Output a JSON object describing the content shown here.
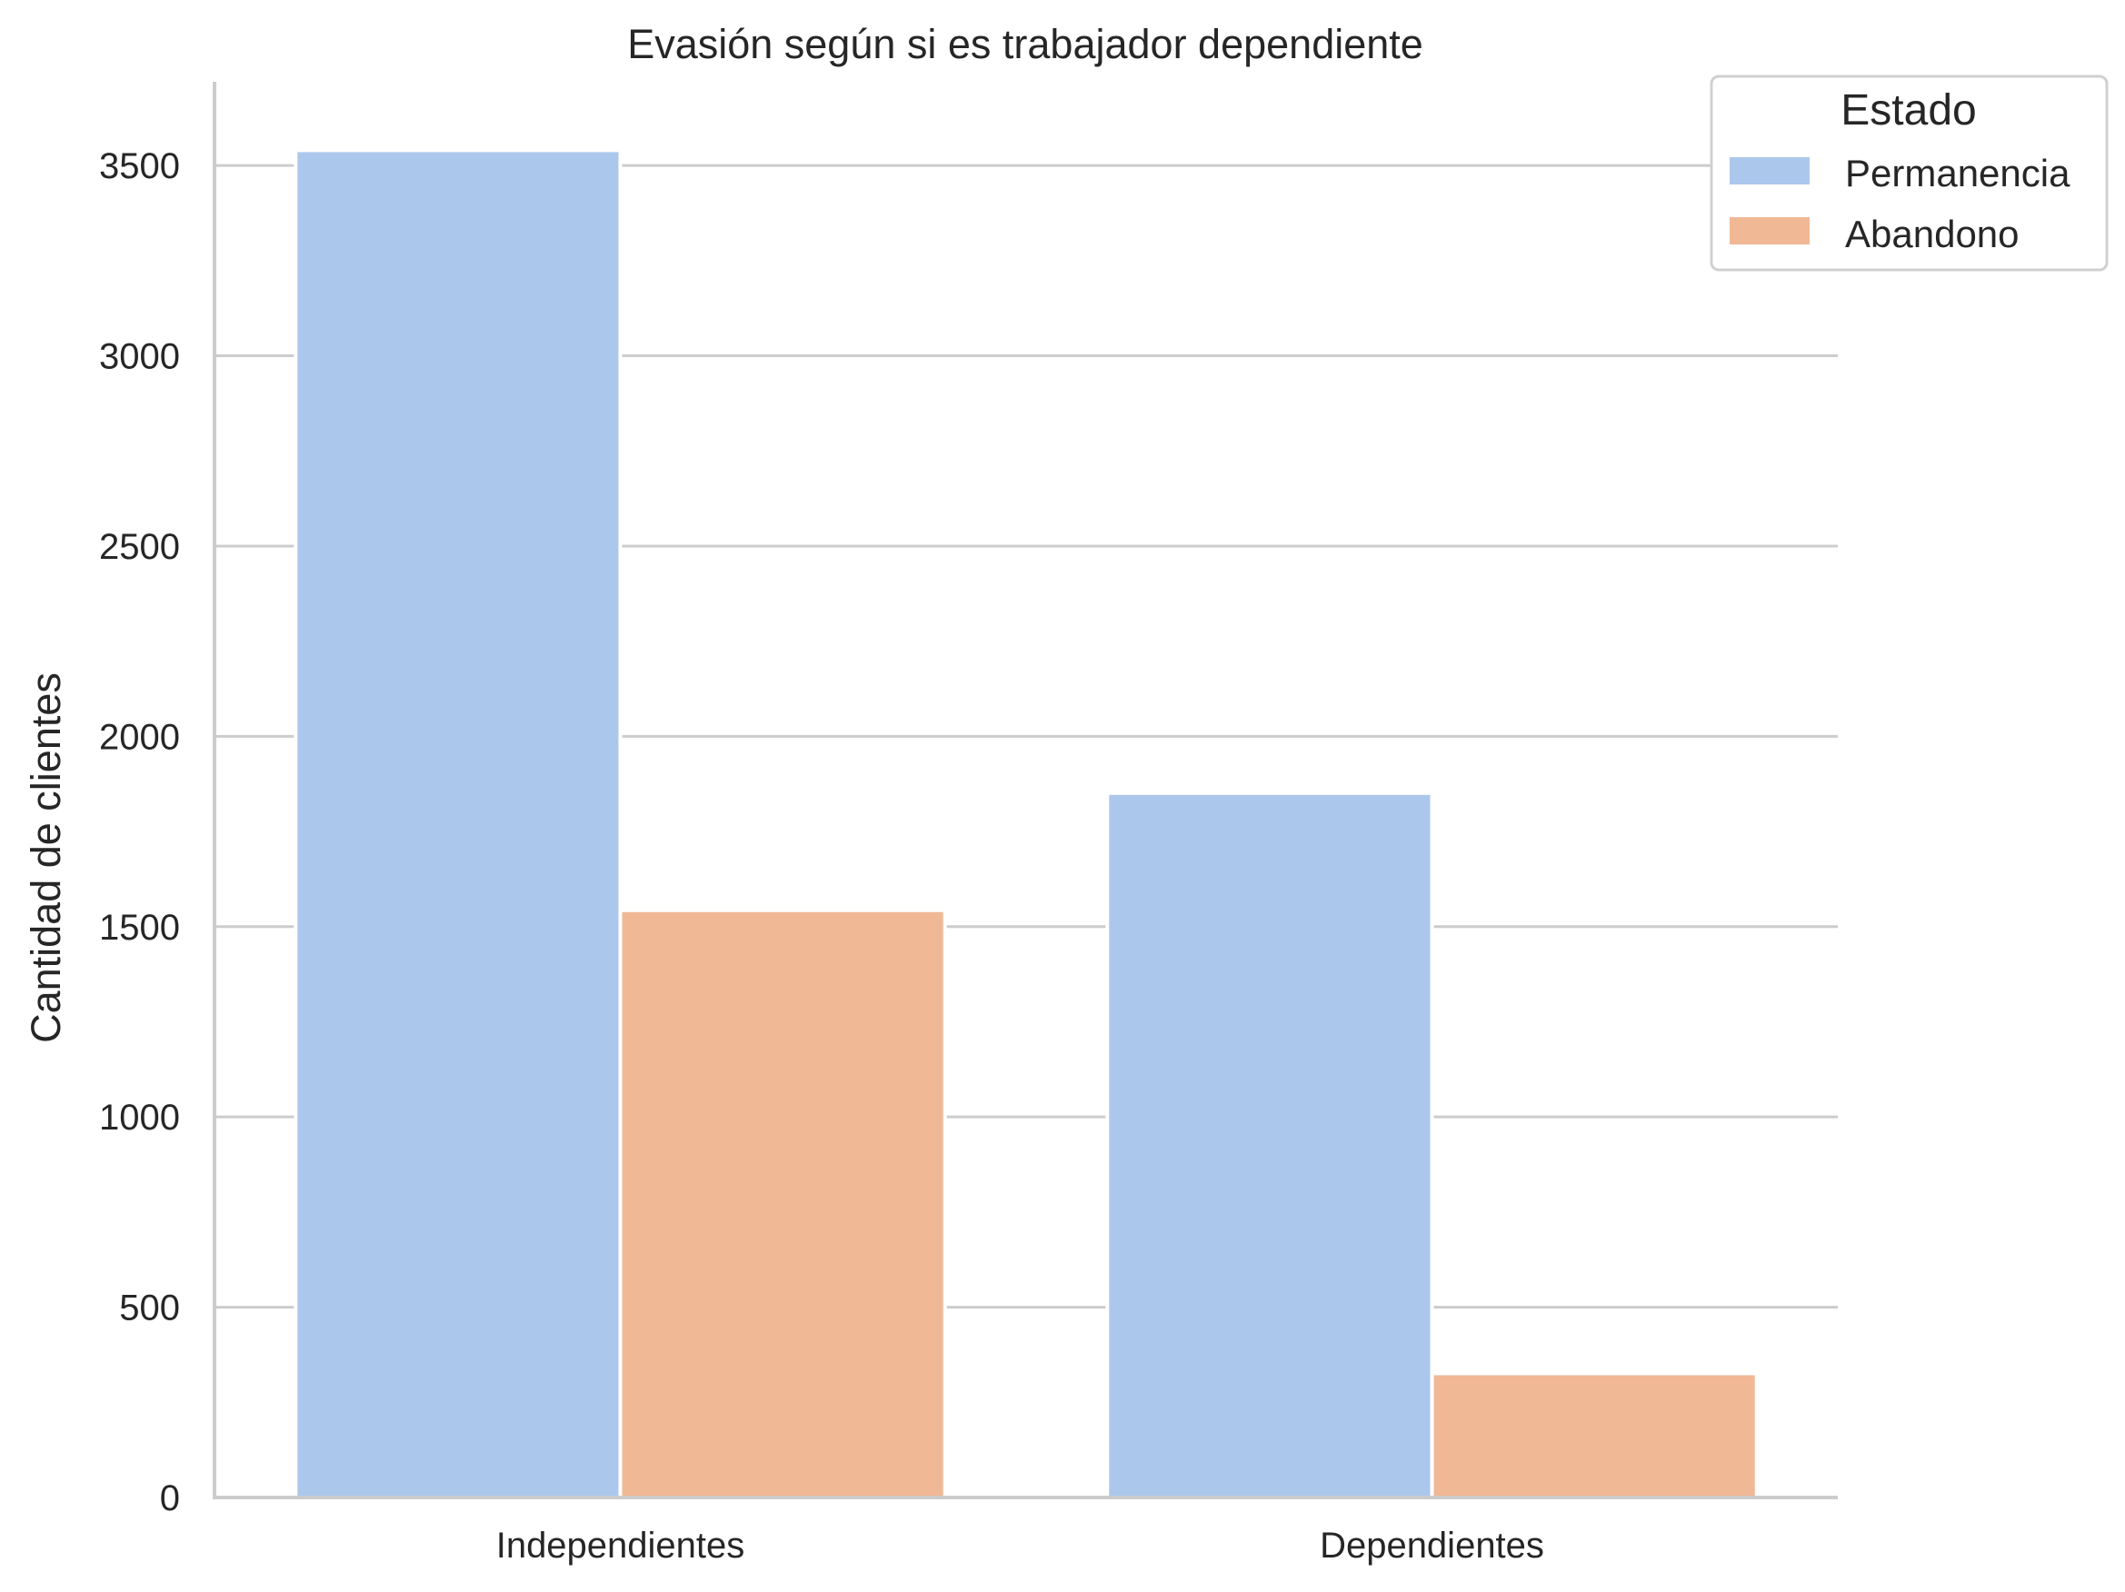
{
  "chart_data": {
    "type": "bar",
    "title": "Evasión según si es trabajador dependiente",
    "xlabel": "",
    "ylabel": "Cantidad de clientes",
    "categories": [
      "Independientes",
      "Dependientes"
    ],
    "series": [
      {
        "name": "Permanencia",
        "values": [
          3540,
          1851
        ],
        "color": "#abc8ec"
      },
      {
        "name": "Abandono",
        "values": [
          1543,
          326
        ],
        "color": "#f0b895"
      }
    ],
    "ylim": [
      0,
      3720
    ],
    "yticks": [
      0,
      500,
      1000,
      1500,
      2000,
      2500,
      3000,
      3500
    ],
    "grid": true,
    "legend": {
      "title": "Estado",
      "position": "top-right"
    }
  }
}
